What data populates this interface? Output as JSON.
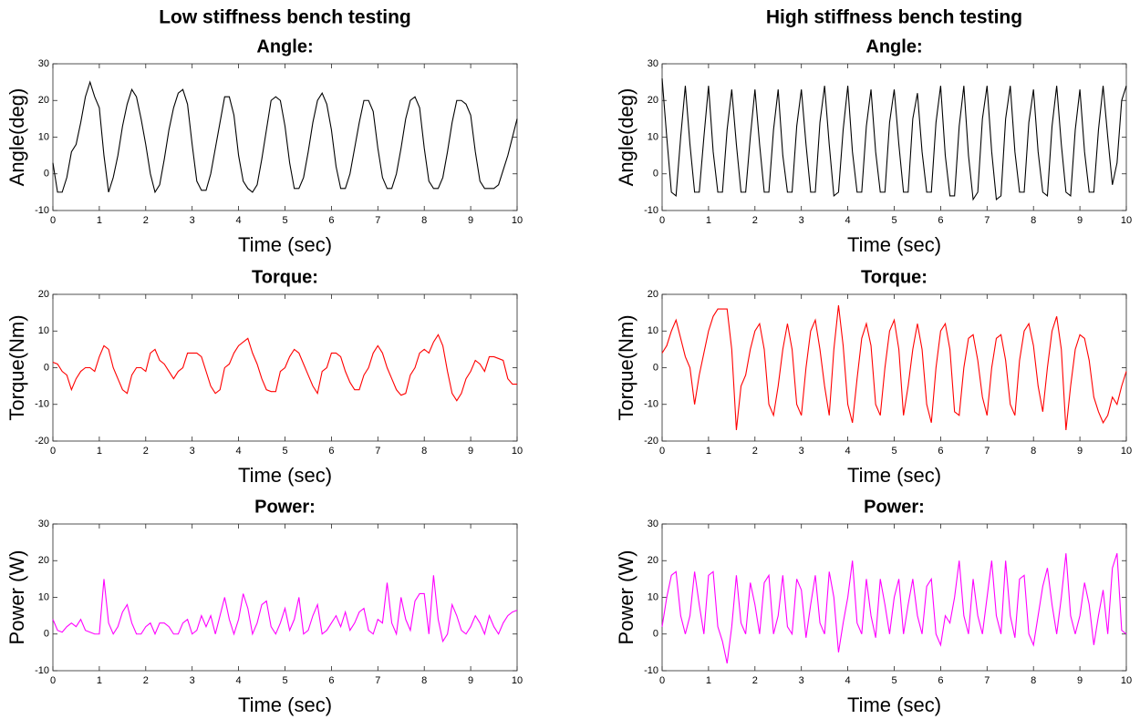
{
  "chart_data": [
    {
      "type": "line",
      "suptitle": "Low stiffness bench testing",
      "title": "Angle:",
      "xlabel": "Time (sec)",
      "ylabel": "Angle(deg)",
      "color": "#000000",
      "x": [
        0,
        0.1,
        0.2,
        0.3,
        0.4,
        0.5,
        0.6,
        0.7,
        0.8,
        0.9,
        1,
        1.1,
        1.2,
        1.3,
        1.4,
        1.5,
        1.6,
        1.7,
        1.8,
        1.9,
        2,
        2.1,
        2.2,
        2.3,
        2.4,
        2.5,
        2.6,
        2.7,
        2.8,
        2.9,
        3,
        3.1,
        3.2,
        3.3,
        3.4,
        3.5,
        3.6,
        3.7,
        3.8,
        3.9,
        4,
        4.1,
        4.2,
        4.3,
        4.4,
        4.5,
        4.6,
        4.7,
        4.8,
        4.9,
        5,
        5.1,
        5.2,
        5.3,
        5.4,
        5.5,
        5.6,
        5.7,
        5.8,
        5.9,
        6,
        6.1,
        6.2,
        6.3,
        6.4,
        6.5,
        6.6,
        6.7,
        6.8,
        6.9,
        7,
        7.1,
        7.2,
        7.3,
        7.4,
        7.5,
        7.6,
        7.7,
        7.8,
        7.9,
        8,
        8.1,
        8.2,
        8.3,
        8.4,
        8.5,
        8.6,
        8.7,
        8.8,
        8.9,
        9,
        9.1,
        9.2,
        9.3,
        9.4,
        9.5,
        9.6,
        9.7,
        9.8,
        9.9,
        10
      ],
      "values": [
        3,
        -5,
        -5,
        -1,
        6,
        8,
        14,
        21,
        25,
        21,
        18,
        5,
        -5,
        -1,
        5,
        13,
        19,
        23,
        21,
        15,
        8,
        0,
        -5,
        -3,
        4,
        12,
        18,
        22,
        23,
        19,
        8,
        -2,
        -4.5,
        -4.5,
        0,
        7,
        14,
        21,
        21,
        16,
        5,
        -2,
        -4,
        -5,
        -3,
        4,
        12,
        20,
        21,
        20,
        13,
        3,
        -4,
        -4,
        -1,
        6,
        14,
        20,
        22,
        19,
        12,
        2,
        -4,
        -4,
        0,
        7,
        14,
        20,
        20,
        17,
        7,
        -1,
        -4,
        -4,
        0,
        7,
        15,
        20,
        21,
        18,
        7,
        -2,
        -4,
        -4,
        -1,
        6,
        14,
        20,
        20,
        19,
        16,
        6,
        -2,
        -4,
        -4,
        -4,
        -3,
        1,
        5,
        10,
        15
      ],
      "xlim": [
        0,
        10
      ],
      "xticks": [
        0,
        1,
        2,
        3,
        4,
        5,
        6,
        7,
        8,
        9,
        10
      ],
      "ylim": [
        -10,
        30
      ],
      "yticks": [
        -10,
        0,
        10,
        20,
        30
      ]
    },
    {
      "type": "line",
      "title": "Torque:",
      "xlabel": "Time (sec)",
      "ylabel": "Torque(Nm)",
      "color": "#ff0000",
      "x": [
        0,
        0.1,
        0.2,
        0.3,
        0.4,
        0.5,
        0.6,
        0.7,
        0.8,
        0.9,
        1,
        1.1,
        1.2,
        1.3,
        1.4,
        1.5,
        1.6,
        1.7,
        1.8,
        1.9,
        2,
        2.1,
        2.2,
        2.3,
        2.4,
        2.5,
        2.6,
        2.7,
        2.8,
        2.9,
        3,
        3.1,
        3.2,
        3.3,
        3.4,
        3.5,
        3.6,
        3.7,
        3.8,
        3.9,
        4,
        4.1,
        4.2,
        4.3,
        4.4,
        4.5,
        4.6,
        4.7,
        4.8,
        4.9,
        5,
        5.1,
        5.2,
        5.3,
        5.4,
        5.5,
        5.6,
        5.7,
        5.8,
        5.9,
        6,
        6.1,
        6.2,
        6.3,
        6.4,
        6.5,
        6.6,
        6.7,
        6.8,
        6.9,
        7,
        7.1,
        7.2,
        7.3,
        7.4,
        7.5,
        7.6,
        7.7,
        7.8,
        7.9,
        8,
        8.1,
        8.2,
        8.3,
        8.4,
        8.5,
        8.6,
        8.7,
        8.8,
        8.9,
        9,
        9.1,
        9.2,
        9.3,
        9.4,
        9.5,
        9.6,
        9.7,
        9.8,
        9.9,
        10
      ],
      "values": [
        1.5,
        1,
        -1,
        -2,
        -6,
        -3,
        -1,
        0,
        0,
        -1,
        3,
        6,
        5,
        0,
        -3,
        -6,
        -7,
        -2,
        0,
        0,
        -1,
        4,
        5,
        2,
        1,
        -1,
        -3,
        -1,
        0,
        4,
        4,
        4,
        3,
        -1,
        -5,
        -7,
        -6,
        0,
        1,
        4,
        6,
        7,
        8,
        4,
        1,
        -3,
        -6,
        -6.5,
        -6.5,
        -1,
        0,
        3,
        5,
        4,
        1,
        -2,
        -5,
        -7,
        -1,
        0,
        4,
        4,
        3,
        -1,
        -4,
        -6,
        -6,
        -2,
        0,
        4,
        6,
        4,
        0,
        -3,
        -6,
        -7.5,
        -7,
        -2,
        0,
        4,
        5,
        4,
        7,
        9,
        6,
        -1,
        -7,
        -9,
        -7,
        -3,
        -1,
        2,
        1,
        -1,
        3,
        3,
        2.5,
        2,
        -3,
        -4.5,
        -4.5
      ],
      "xlim": [
        0,
        10
      ],
      "xticks": [
        0,
        1,
        2,
        3,
        4,
        5,
        6,
        7,
        8,
        9,
        10
      ],
      "ylim": [
        -20,
        20
      ],
      "yticks": [
        -20,
        -10,
        0,
        10,
        20
      ]
    },
    {
      "type": "line",
      "title": "Power:",
      "xlabel": "Time (sec)",
      "ylabel": "Power (W)",
      "color": "#ff00ff",
      "x": [
        0,
        0.1,
        0.2,
        0.3,
        0.4,
        0.5,
        0.6,
        0.7,
        0.8,
        0.9,
        1,
        1.1,
        1.2,
        1.3,
        1.4,
        1.5,
        1.6,
        1.7,
        1.8,
        1.9,
        2,
        2.1,
        2.2,
        2.3,
        2.4,
        2.5,
        2.6,
        2.7,
        2.8,
        2.9,
        3,
        3.1,
        3.2,
        3.3,
        3.4,
        3.5,
        3.6,
        3.7,
        3.8,
        3.9,
        4,
        4.1,
        4.2,
        4.3,
        4.4,
        4.5,
        4.6,
        4.7,
        4.8,
        4.9,
        5,
        5.1,
        5.2,
        5.3,
        5.4,
        5.5,
        5.6,
        5.7,
        5.8,
        5.9,
        6,
        6.1,
        6.2,
        6.3,
        6.4,
        6.5,
        6.6,
        6.7,
        6.8,
        6.9,
        7,
        7.1,
        7.2,
        7.3,
        7.4,
        7.5,
        7.6,
        7.7,
        7.8,
        7.9,
        8,
        8.1,
        8.2,
        8.3,
        8.4,
        8.5,
        8.6,
        8.7,
        8.8,
        8.9,
        9,
        9.1,
        9.2,
        9.3,
        9.4,
        9.5,
        9.6,
        9.7,
        9.8,
        9.9,
        10
      ],
      "values": [
        4,
        1,
        0.5,
        2,
        3,
        2,
        4,
        1,
        0.5,
        0,
        0,
        15,
        3,
        0,
        2,
        6,
        8,
        3,
        0,
        0,
        2,
        3,
        0,
        3,
        3,
        2,
        0,
        0,
        3,
        4,
        0,
        1,
        5,
        2,
        5,
        0,
        5,
        10,
        4,
        0,
        4,
        11,
        7,
        0,
        3,
        8,
        9,
        2,
        0,
        3,
        7,
        1,
        4,
        10,
        0,
        1,
        5,
        8,
        0,
        1,
        3,
        5,
        2,
        6,
        1,
        3,
        6,
        7,
        1,
        0,
        4,
        3,
        14,
        3,
        0,
        10,
        4,
        1,
        9,
        11,
        11,
        0,
        16,
        4,
        -2,
        0,
        8,
        5,
        1,
        0,
        2,
        5,
        3,
        0,
        5,
        2,
        0,
        3,
        5,
        6,
        6.5
      ],
      "xlim": [
        0,
        10
      ],
      "xticks": [
        0,
        1,
        2,
        3,
        4,
        5,
        6,
        7,
        8,
        9,
        10
      ],
      "ylim": [
        -10,
        30
      ],
      "yticks": [
        -10,
        0,
        10,
        20,
        30
      ]
    },
    {
      "type": "line",
      "suptitle": "High stiffness bench testing",
      "title": "Angle:",
      "xlabel": "Time (sec)",
      "ylabel": "Angle(deg)",
      "color": "#000000",
      "x": [
        0,
        0.1,
        0.2,
        0.3,
        0.4,
        0.5,
        0.6,
        0.7,
        0.8,
        0.9,
        1,
        1.1,
        1.2,
        1.3,
        1.4,
        1.5,
        1.6,
        1.7,
        1.8,
        1.9,
        2,
        2.1,
        2.2,
        2.3,
        2.4,
        2.5,
        2.6,
        2.7,
        2.8,
        2.9,
        3,
        3.1,
        3.2,
        3.3,
        3.4,
        3.5,
        3.6,
        3.7,
        3.8,
        3.9,
        4,
        4.1,
        4.2,
        4.3,
        4.4,
        4.5,
        4.6,
        4.7,
        4.8,
        4.9,
        5,
        5.1,
        5.2,
        5.3,
        5.4,
        5.5,
        5.6,
        5.7,
        5.8,
        5.9,
        6,
        6.1,
        6.2,
        6.3,
        6.4,
        6.5,
        6.6,
        6.7,
        6.8,
        6.9,
        7,
        7.1,
        7.2,
        7.3,
        7.4,
        7.5,
        7.6,
        7.7,
        7.8,
        7.9,
        8,
        8.1,
        8.2,
        8.3,
        8.4,
        8.5,
        8.6,
        8.7,
        8.8,
        8.9,
        9,
        9.1,
        9.2,
        9.3,
        9.4,
        9.5,
        9.6,
        9.7,
        9.8,
        9.9,
        10
      ],
      "values": [
        26,
        10,
        -5,
        -6,
        10,
        24,
        8,
        -5,
        -5,
        10,
        24,
        6,
        -5,
        -5,
        12,
        23,
        8,
        -5,
        -5,
        10,
        23,
        8,
        -5,
        -5,
        12,
        23,
        5,
        -5,
        -5,
        13,
        23,
        8,
        -5,
        -5,
        14,
        24,
        8,
        -6,
        -5,
        12,
        24,
        6,
        -5,
        -5,
        13,
        23,
        6,
        -5,
        -5,
        14,
        23,
        8,
        -5,
        -5,
        15,
        22,
        6,
        -5,
        -5,
        14,
        24,
        5,
        -6,
        -6,
        13,
        24,
        5,
        -7,
        -5,
        15,
        24,
        6,
        -7,
        -6,
        15,
        24,
        6,
        -5,
        -5,
        14,
        23,
        6,
        -5,
        -6,
        13,
        24,
        8,
        -5,
        -6,
        12,
        23,
        6,
        -5,
        -5,
        12,
        24,
        10,
        -3,
        3,
        20,
        24
      ],
      "xlim": [
        0,
        10
      ],
      "xticks": [
        0,
        1,
        2,
        3,
        4,
        5,
        6,
        7,
        8,
        9,
        10
      ],
      "ylim": [
        -10,
        30
      ],
      "yticks": [
        -10,
        0,
        10,
        20,
        30
      ]
    },
    {
      "type": "line",
      "title": "Torque:",
      "xlabel": "Time (sec)",
      "ylabel": "Torque(Nm)",
      "color": "#ff0000",
      "x": [
        0,
        0.1,
        0.2,
        0.3,
        0.4,
        0.5,
        0.6,
        0.7,
        0.8,
        0.9,
        1,
        1.1,
        1.2,
        1.3,
        1.4,
        1.5,
        1.6,
        1.7,
        1.8,
        1.9,
        2,
        2.1,
        2.2,
        2.3,
        2.4,
        2.5,
        2.6,
        2.7,
        2.8,
        2.9,
        3,
        3.1,
        3.2,
        3.3,
        3.4,
        3.5,
        3.6,
        3.7,
        3.8,
        3.9,
        4,
        4.1,
        4.2,
        4.3,
        4.4,
        4.5,
        4.6,
        4.7,
        4.8,
        4.9,
        5,
        5.1,
        5.2,
        5.3,
        5.4,
        5.5,
        5.6,
        5.7,
        5.8,
        5.9,
        6,
        6.1,
        6.2,
        6.3,
        6.4,
        6.5,
        6.6,
        6.7,
        6.8,
        6.9,
        7,
        7.1,
        7.2,
        7.3,
        7.4,
        7.5,
        7.6,
        7.7,
        7.8,
        7.9,
        8,
        8.1,
        8.2,
        8.3,
        8.4,
        8.5,
        8.6,
        8.7,
        8.8,
        8.9,
        9,
        9.1,
        9.2,
        9.3,
        9.4,
        9.5,
        9.6,
        9.7,
        9.8,
        9.9,
        10
      ],
      "values": [
        4,
        6,
        10,
        13,
        8,
        3,
        0,
        -10,
        -2,
        4,
        10,
        14,
        16,
        16,
        16,
        5,
        -17,
        -5,
        -2,
        5,
        10,
        12,
        5,
        -10,
        -13,
        -5,
        5,
        12,
        5,
        -10,
        -13,
        0,
        10,
        13,
        5,
        -5,
        -13,
        5,
        17,
        6,
        -10,
        -15,
        -3,
        8,
        12,
        6,
        -10,
        -13,
        0,
        10,
        13,
        5,
        -13,
        -5,
        5,
        12,
        5,
        -10,
        -15,
        0,
        10,
        12,
        5,
        -12,
        -13,
        0,
        8,
        9,
        2,
        -8,
        -13,
        0,
        8,
        9,
        2,
        -10,
        -13,
        2,
        10,
        12,
        6,
        -5,
        -12,
        0,
        10,
        14,
        5,
        -17,
        -5,
        5,
        9,
        8,
        2,
        -8,
        -12,
        -15,
        -13,
        -8,
        -10,
        -5,
        -1
      ],
      "xlim": [
        0,
        10
      ],
      "xticks": [
        0,
        1,
        2,
        3,
        4,
        5,
        6,
        7,
        8,
        9,
        10
      ],
      "ylim": [
        -20,
        20
      ],
      "yticks": [
        -20,
        -10,
        0,
        10,
        20
      ]
    },
    {
      "type": "line",
      "title": "Power:",
      "xlabel": "Time (sec)",
      "ylabel": "Power (W)",
      "color": "#ff00ff",
      "x": [
        0,
        0.1,
        0.2,
        0.3,
        0.4,
        0.5,
        0.6,
        0.7,
        0.8,
        0.9,
        1,
        1.1,
        1.2,
        1.3,
        1.4,
        1.5,
        1.6,
        1.7,
        1.8,
        1.9,
        2,
        2.1,
        2.2,
        2.3,
        2.4,
        2.5,
        2.6,
        2.7,
        2.8,
        2.9,
        3,
        3.1,
        3.2,
        3.3,
        3.4,
        3.5,
        3.6,
        3.7,
        3.8,
        3.9,
        4,
        4.1,
        4.2,
        4.3,
        4.4,
        4.5,
        4.6,
        4.7,
        4.8,
        4.9,
        5,
        5.1,
        5.2,
        5.3,
        5.4,
        5.5,
        5.6,
        5.7,
        5.8,
        5.9,
        6,
        6.1,
        6.2,
        6.3,
        6.4,
        6.5,
        6.6,
        6.7,
        6.8,
        6.9,
        7,
        7.1,
        7.2,
        7.3,
        7.4,
        7.5,
        7.6,
        7.7,
        7.8,
        7.9,
        8,
        8.1,
        8.2,
        8.3,
        8.4,
        8.5,
        8.6,
        8.7,
        8.8,
        8.9,
        9,
        9.1,
        9.2,
        9.3,
        9.4,
        9.5,
        9.6,
        9.7,
        9.8,
        9.9,
        10
      ],
      "values": [
        2,
        10,
        16,
        17,
        5,
        0,
        5,
        17,
        8,
        0,
        16,
        17,
        2,
        -2,
        -8,
        2,
        16,
        3,
        0,
        14,
        8,
        0,
        14,
        16,
        0,
        5,
        16,
        2,
        0,
        15,
        12,
        -1,
        8,
        16,
        3,
        0,
        17,
        10,
        -5,
        3,
        10,
        20,
        3,
        0,
        15,
        5,
        -1,
        15,
        8,
        0,
        10,
        15,
        0,
        8,
        15,
        5,
        0,
        13,
        15,
        0,
        -3,
        5,
        3,
        10,
        20,
        5,
        0,
        15,
        5,
        0,
        10,
        20,
        5,
        0,
        20,
        5,
        -1,
        15,
        16,
        0,
        -3,
        5,
        13,
        18,
        8,
        0,
        10,
        22,
        5,
        0,
        5,
        14,
        8,
        -3,
        5,
        12,
        0,
        18,
        22,
        1,
        0
      ],
      "xlim": [
        0,
        10
      ],
      "xticks": [
        0,
        1,
        2,
        3,
        4,
        5,
        6,
        7,
        8,
        9,
        10
      ],
      "ylim": [
        -10,
        30
      ],
      "yticks": [
        -10,
        0,
        10,
        20,
        30
      ]
    }
  ]
}
